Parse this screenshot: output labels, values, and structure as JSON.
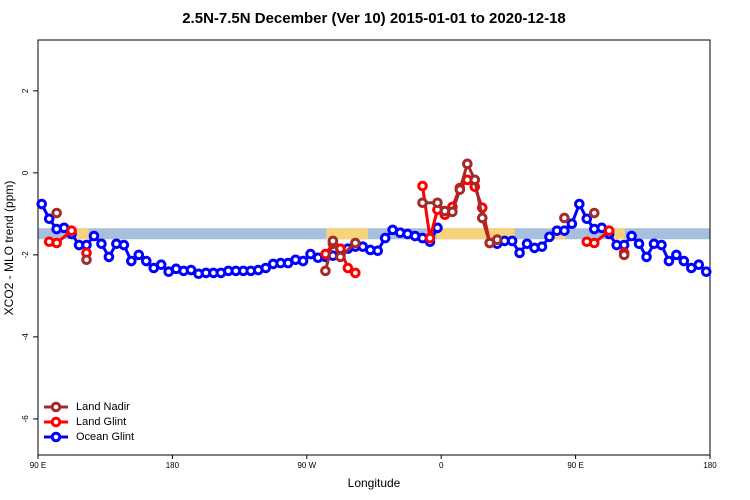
{
  "chart_data": {
    "type": "line",
    "title": "2.5N-7.5N December (Ver 10)   2015-01-01 to 2020-12-18",
    "xlabel": "Longitude",
    "ylabel": "XCO2 - MLO trend (ppm)",
    "xlim": [
      90,
      540
    ],
    "xticks": [
      {
        "value": 90,
        "label": "90 E"
      },
      180,
      {
        "value": 270,
        "label": "90 W"
      },
      {
        "value": 360,
        "label": "0"
      },
      {
        "value": 450,
        "label": "90 E"
      },
      {
        "value": 540,
        "label": "180"
      }
    ],
    "ylim": [
      -6.88,
      3.24
    ],
    "yticks": [
      -6,
      -4,
      -2,
      0,
      2
    ],
    "legend": "bottom-left",
    "band": {
      "ylim": [
        -1.62,
        -1.35
      ],
      "color": "#a7bfdc",
      "highlight_color": "#f7d37e",
      "highlight_xspans": [
        [
          115,
          124
        ],
        [
          283,
          311
        ],
        [
          357,
          409
        ],
        [
          436,
          443
        ],
        [
          472,
          483
        ]
      ]
    },
    "series": [
      {
        "name": "Land Nadir",
        "color": "#a52a2a",
        "x": [
          102.5,
          112.5,
          122.5,
          132.5,
          282.5,
          287.5,
          292.5,
          302.5,
          312.5,
          347.5,
          357.5,
          362.5,
          367.5,
          372.5,
          377.5,
          382.5,
          387.5,
          392.5,
          397.5,
          407.5,
          442.5,
          452.5,
          462.5,
          472.5,
          482.5
        ],
        "values": [
          -0.98,
          null,
          -2.12,
          null,
          -2.39,
          -1.66,
          -2.05,
          -1.71,
          null,
          -0.73,
          -0.73,
          -0.93,
          -0.95,
          -0.41,
          0.22,
          -0.17,
          -1.1,
          -1.71,
          -1.63,
          null,
          -1.1,
          null,
          -0.98,
          null,
          -2.0
        ]
      },
      {
        "name": "Land Glint",
        "color": "#ff0000",
        "x": [
          97.5,
          102.5,
          112.5,
          117.5,
          122.5,
          132.5,
          282.5,
          287.5,
          292.5,
          297.5,
          302.5,
          312.5,
          347.5,
          352.5,
          357.5,
          362.5,
          367.5,
          372.5,
          377.5,
          382.5,
          387.5,
          392.5,
          397.5,
          407.5,
          457.5,
          462.5,
          472.5,
          477.5,
          482.5
        ],
        "values": [
          -1.68,
          -1.71,
          -1.41,
          null,
          -1.95,
          null,
          -1.98,
          -1.73,
          -1.85,
          -2.32,
          -2.44,
          null,
          -0.32,
          -1.59,
          -0.9,
          -1.02,
          -0.83,
          -0.37,
          -0.17,
          -0.34,
          -0.85,
          -1.71,
          -1.63,
          null,
          -1.68,
          -1.71,
          -1.41,
          null,
          -1.95
        ]
      },
      {
        "name": "Ocean Glint",
        "color": "#0000ff",
        "x": [
          92.5,
          97.5,
          102.5,
          107.5,
          112.5,
          117.5,
          122.5,
          127.5,
          132.5,
          137.5,
          142.5,
          147.5,
          152.5,
          157.5,
          162.5,
          167.5,
          172.5,
          177.5,
          182.5,
          187.5,
          192.5,
          197.5,
          202.5,
          207.5,
          212.5,
          217.5,
          222.5,
          227.5,
          232.5,
          237.5,
          242.5,
          247.5,
          252.5,
          257.5,
          262.5,
          267.5,
          272.5,
          277.5,
          282.5,
          287.5,
          292.5,
          297.5,
          302.5,
          307.5,
          312.5,
          317.5,
          322.5,
          327.5,
          332.5,
          337.5,
          342.5,
          347.5,
          352.5,
          357.5,
          362.5,
          367.5,
          372.5,
          377.5,
          382.5,
          387.5,
          392.5,
          397.5,
          402.5,
          407.5,
          412.5,
          417.5,
          422.5,
          427.5,
          432.5,
          437.5,
          442.5,
          447.5,
          452.5,
          457.5,
          462.5,
          467.5,
          472.5,
          477.5,
          482.5,
          487.5,
          492.5,
          497.5,
          502.5,
          507.5,
          512.5,
          517.5,
          522.5,
          527.5,
          532.5,
          537.5
        ],
        "values": [
          -0.76,
          -1.12,
          -1.37,
          -1.34,
          -1.49,
          -1.76,
          -1.76,
          -1.54,
          -1.73,
          -2.05,
          -1.73,
          -1.76,
          -2.15,
          -2.0,
          -2.15,
          -2.32,
          -2.24,
          -2.41,
          -2.34,
          -2.39,
          -2.37,
          -2.46,
          -2.44,
          -2.44,
          -2.44,
          -2.39,
          -2.39,
          -2.39,
          -2.39,
          -2.37,
          -2.32,
          -2.22,
          -2.2,
          -2.2,
          -2.12,
          -2.15,
          -1.98,
          -2.07,
          -2.05,
          -2.02,
          -2.0,
          -1.85,
          -1.8,
          -1.8,
          -1.88,
          -1.9,
          -1.59,
          -1.39,
          -1.46,
          -1.49,
          -1.54,
          -1.59,
          -1.68,
          -1.34,
          null,
          null,
          null,
          null,
          null,
          null,
          null,
          -1.73,
          -1.66,
          -1.66,
          -1.95,
          -1.73,
          -1.83,
          -1.8,
          -1.56,
          -1.41,
          -1.41,
          -1.24,
          -0.76,
          -1.12,
          -1.37,
          -1.34,
          -1.49,
          -1.76,
          -1.76,
          -1.54,
          -1.73,
          -2.05,
          -1.73,
          -1.76,
          -2.15,
          -2.0,
          -2.15,
          -2.32,
          -2.24,
          -2.41
        ]
      }
    ]
  }
}
